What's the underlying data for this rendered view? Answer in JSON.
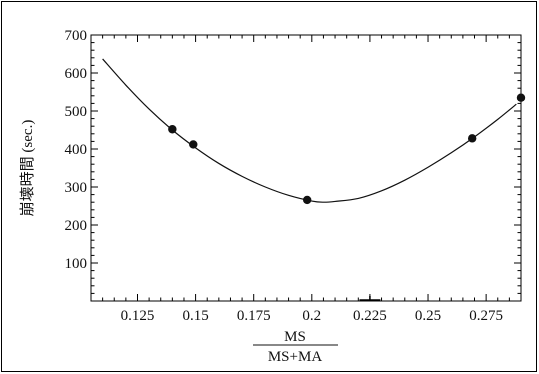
{
  "chart_data": {
    "type": "scatter",
    "title": "",
    "xlabel": "",
    "xlabel_numerator": "MS",
    "xlabel_denominator": "MS+MA",
    "ylabel": "崩壊時間 (sec.)",
    "xlim": [
      0.105,
      0.29
    ],
    "ylim": [
      0,
      700
    ],
    "x_ticks": [
      "0.125",
      "0.15",
      "0.175",
      "0.2",
      "0.225",
      "0.25",
      "0.275"
    ],
    "x_tick_values": [
      0.125,
      0.15,
      0.175,
      0.2,
      0.225,
      0.25,
      0.275
    ],
    "y_ticks": [
      "100",
      "200",
      "300",
      "400",
      "500",
      "600",
      "700"
    ],
    "y_tick_values": [
      100,
      200,
      300,
      400,
      500,
      600,
      700
    ],
    "grid": false,
    "series": [
      {
        "kind": "points",
        "x": [
          0.14,
          0.149,
          0.198,
          0.269,
          0.29
        ],
        "y": [
          452,
          412,
          266,
          428,
          535
        ]
      },
      {
        "kind": "fit-curve",
        "x": [
          0.11,
          0.12,
          0.13,
          0.14,
          0.15,
          0.16,
          0.17,
          0.18,
          0.19,
          0.2,
          0.205,
          0.21,
          0.22,
          0.23,
          0.24,
          0.25,
          0.26,
          0.27,
          0.28,
          0.288
        ],
        "y": [
          637,
          568,
          505,
          450,
          403,
          362,
          328,
          300,
          278,
          263,
          260,
          262,
          270,
          290,
          318,
          352,
          390,
          432,
          478,
          518
        ]
      }
    ]
  }
}
